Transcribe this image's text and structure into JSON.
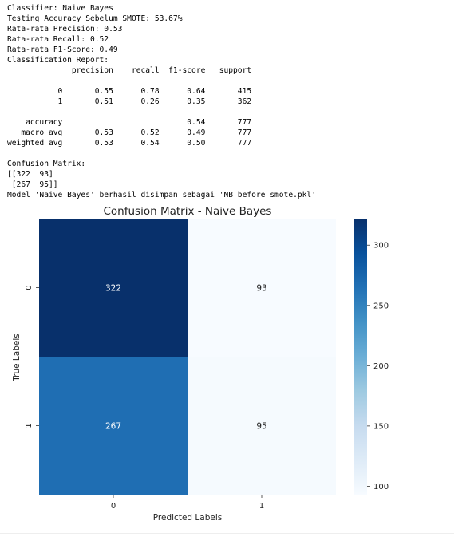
{
  "console_lines": [
    "Classifier: Naive Bayes",
    "Testing Accuracy Sebelum SMOTE: 53.67%",
    "Rata-rata Precision: 0.53",
    "Rata-rata Recall: 0.52",
    "Rata-rata F1-Score: 0.49",
    "Classification Report:",
    "              precision    recall  f1-score   support",
    "",
    "           0       0.55      0.78      0.64       415",
    "           1       0.51      0.26      0.35       362",
    "",
    "    accuracy                           0.54       777",
    "   macro avg       0.53      0.52      0.49       777",
    "weighted avg       0.53      0.54      0.50       777",
    "",
    "Confusion Matrix:",
    "[[322  93]",
    " [267  95]]",
    "Model 'Naive Bayes' berhasil disimpan sebagai 'NB_before_smote.pkl'"
  ],
  "chart_data": {
    "type": "heatmap",
    "title": "Confusion Matrix - Naive Bayes",
    "xlabel": "Predicted Labels",
    "ylabel": "True Labels",
    "x_categories": [
      "0",
      "1"
    ],
    "y_categories": [
      "0",
      "1"
    ],
    "values": [
      [
        322,
        93
      ],
      [
        267,
        95
      ]
    ],
    "annotations": [
      [
        "322",
        "93"
      ],
      [
        "267",
        "95"
      ]
    ],
    "colormap": "Blues",
    "color_range": [
      93,
      322
    ],
    "colorbar_ticks": [
      100,
      150,
      200,
      250,
      300
    ],
    "colorbar_tick_labels": [
      "100",
      "150",
      "200",
      "250",
      "300"
    ]
  }
}
